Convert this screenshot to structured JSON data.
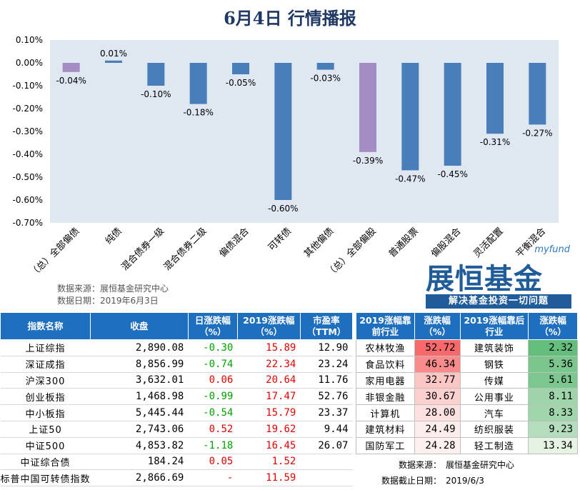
{
  "title": "6月4日  行情播报",
  "chart_data": {
    "type": "bar",
    "categories": [
      "（总）全部偏债",
      "纯债",
      "混合债券一级",
      "混合债券二级",
      "偏债混合",
      "可转债",
      "其他偏债",
      "（总）全部偏股",
      "普通股票",
      "偏股混合",
      "灵活配置",
      "平衡混合"
    ],
    "values": [
      -0.04,
      0.01,
      -0.1,
      -0.18,
      -0.05,
      -0.6,
      -0.03,
      -0.39,
      -0.47,
      -0.45,
      -0.31,
      -0.27
    ],
    "value_labels": [
      "-0.04%",
      "0.01%",
      "-0.10%",
      "-0.18%",
      "-0.05%",
      "-0.60%",
      "-0.03%",
      "-0.39%",
      "-0.47%",
      "-0.45%",
      "-0.31%",
      "-0.27%"
    ],
    "highlight": [
      true,
      false,
      false,
      false,
      false,
      false,
      false,
      true,
      false,
      false,
      false,
      false
    ],
    "ylim": [
      -0.7,
      0.1
    ],
    "yticks": [
      0.1,
      0.0,
      -0.1,
      -0.2,
      -0.3,
      -0.4,
      -0.5,
      -0.6,
      -0.7
    ],
    "ytick_labels": [
      "0.10%",
      "0.00%",
      "-0.10%",
      "-0.20%",
      "-0.30%",
      "-0.40%",
      "-0.50%",
      "-0.60%",
      "-0.70%"
    ],
    "xlabel": "",
    "ylabel": "",
    "grid": false,
    "colors": {
      "bar": "#4a7ebb",
      "highlight": "#a48dc4",
      "plot_bg": "#dfe7f1"
    }
  },
  "source": {
    "line1": "数据来源：展恒基金研究中心",
    "line2": "数据日期：2019年6月3日"
  },
  "logo": {
    "myfund": "myfund",
    "name": "展恒基金",
    "slogan": "解决基金投资一切问题"
  },
  "left_table": {
    "headers": [
      "指数名称",
      "收盘",
      "日涨跌幅（%）",
      "2019涨跌幅（%）",
      "市盈率（TTM）"
    ],
    "rows": [
      {
        "name": "上证综指",
        "close": "2,890.08",
        "daily": "-0.30",
        "ytd": "15.89",
        "pe": "12.90",
        "dir": "green"
      },
      {
        "name": "深证成指",
        "close": "8,856.99",
        "daily": "-0.74",
        "ytd": "22.34",
        "pe": "23.24",
        "dir": "green"
      },
      {
        "name": "沪深300",
        "close": "3,632.01",
        "daily": "0.06",
        "ytd": "20.64",
        "pe": "11.76",
        "dir": "red"
      },
      {
        "name": "创业板指",
        "close": "1,468.98",
        "daily": "-0.99",
        "ytd": "17.47",
        "pe": "52.76",
        "dir": "green"
      },
      {
        "name": "中小板指",
        "close": "5,445.44",
        "daily": "-0.54",
        "ytd": "15.79",
        "pe": "23.37",
        "dir": "green"
      },
      {
        "name": "上证50",
        "close": "2,743.06",
        "daily": "0.52",
        "ytd": "19.62",
        "pe": "9.44",
        "dir": "red"
      },
      {
        "name": "中证500",
        "close": "4,853.82",
        "daily": "-1.18",
        "ytd": "16.45",
        "pe": "26.07",
        "dir": "green"
      },
      {
        "name": "中证综合债",
        "close": "184.24",
        "daily": "0.05",
        "ytd": "1.52",
        "pe": "",
        "dir": "red"
      },
      {
        "name": "标普中国可转债指数",
        "close": "2,866.69",
        "daily": "-",
        "ytd": "11.59",
        "pe": "",
        "dir": "red"
      }
    ]
  },
  "right_table": {
    "headers": [
      "2019涨幅靠前行业",
      "涨跌幅（%）",
      "2019涨幅靠后行业",
      "涨跌幅（%）"
    ],
    "rows": [
      {
        "top": "农林牧渔",
        "top_val": "52.72",
        "top_color": "#f8696b",
        "bot": "建筑装饰",
        "bot_val": "2.32",
        "bot_color": "#63be7b"
      },
      {
        "top": "食品饮料",
        "top_val": "46.34",
        "top_color": "#f98b8c",
        "bot": "钢铁",
        "bot_val": "5.36",
        "bot_color": "#7ac68d"
      },
      {
        "top": "家用电器",
        "top_val": "32.77",
        "top_color": "#fcc6c5",
        "bot": "传媒",
        "bot_val": "5.61",
        "bot_color": "#7cc78f"
      },
      {
        "top": "非银金融",
        "top_val": "30.67",
        "top_color": "#fcd0cf",
        "bot": "公用事业",
        "bot_val": "8.11",
        "bot_color": "#9dd4a9"
      },
      {
        "top": "计算机",
        "top_val": "28.00",
        "top_color": "#fde0df",
        "bot": "汽车",
        "bot_val": "8.33",
        "bot_color": "#a0d6ab"
      },
      {
        "top": "建筑材料",
        "top_val": "24.49",
        "top_color": "#fdeeed",
        "bot": "纺织服装",
        "bot_val": "9.23",
        "bot_color": "#b3ddbc"
      },
      {
        "top": "国防军工",
        "top_val": "24.28",
        "top_color": "#fdf0ef",
        "bot": "轻工制造",
        "bot_val": "13.34",
        "bot_color": "#e6f3e3"
      }
    ],
    "source_label": "数据来源：",
    "source_value": "展恒基金研究中心",
    "date_label": "数据截止日期：",
    "date_value": "2019/6/3"
  }
}
